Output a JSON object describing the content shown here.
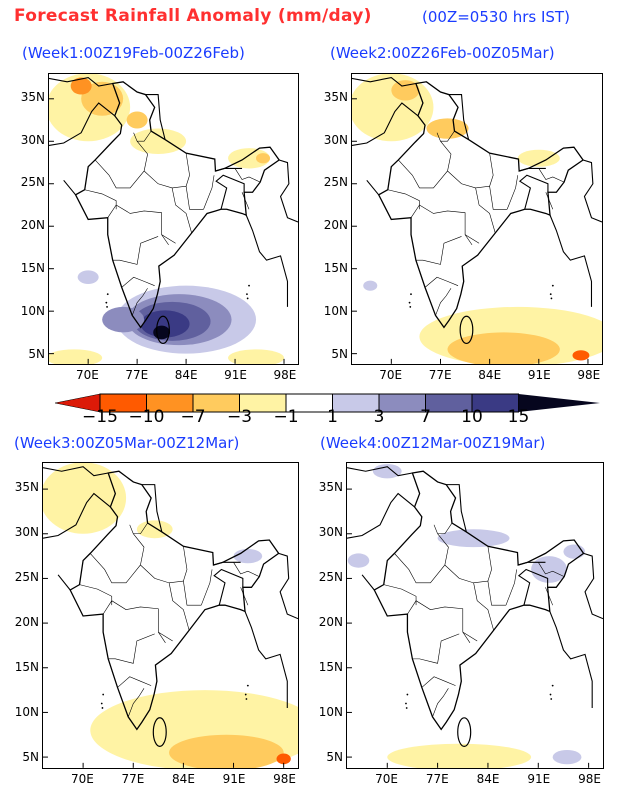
{
  "header": {
    "title": "Forecast Rainfall Anomaly (mm/day)",
    "subtitle": "(00Z=0530 hrs IST)"
  },
  "axes": {
    "lat_labels": [
      "35N",
      "30N",
      "25N",
      "20N",
      "15N",
      "10N",
      "5N"
    ],
    "lat_values": [
      35,
      30,
      25,
      20,
      15,
      10,
      5
    ],
    "lon_labels": [
      "70E",
      "77E",
      "84E",
      "91E",
      "98E"
    ],
    "lon_values": [
      70,
      77,
      84,
      91,
      98
    ],
    "extent": {
      "lon": [
        64.4,
        100
      ],
      "lat": [
        3.8,
        37.9
      ]
    }
  },
  "colorbar": {
    "labels": [
      "−15",
      "−10",
      "−7",
      "−3",
      "−1",
      "1",
      "3",
      "7",
      "10",
      "15"
    ],
    "colors": [
      "#dc1a08",
      "#ff5a00",
      "#ff9222",
      "#ffcb5e",
      "#fff3a4",
      "#ffffff",
      "#c8c9e8",
      "#8c8cbe",
      "#60609e",
      "#3a3a84",
      "#06061e"
    ]
  },
  "panels": [
    {
      "title": "(Week1:00Z19Feb-00Z26Feb)",
      "anomaly_regions": [
        {
          "lon": 70,
          "lat": 34,
          "rx": 6,
          "ry": 4,
          "cat": 4
        },
        {
          "lon": 72,
          "lat": 35,
          "rx": 3,
          "ry": 2,
          "cat": 3
        },
        {
          "lon": 69,
          "lat": 36.5,
          "rx": 1.5,
          "ry": 1,
          "cat": 2
        },
        {
          "lon": 77,
          "lat": 32.5,
          "rx": 1.5,
          "ry": 1,
          "cat": 3
        },
        {
          "lon": 80,
          "lat": 30,
          "rx": 4,
          "ry": 1.5,
          "cat": 4
        },
        {
          "lon": 93,
          "lat": 28,
          "rx": 3,
          "ry": 1.2,
          "cat": 4
        },
        {
          "lon": 95,
          "lat": 28,
          "rx": 1,
          "ry": 0.6,
          "cat": 3
        },
        {
          "lon": 68,
          "lat": 4.5,
          "rx": 4,
          "ry": 1,
          "cat": 4
        },
        {
          "lon": 94,
          "lat": 4.5,
          "rx": 4,
          "ry": 1,
          "cat": 4
        },
        {
          "lon": 84,
          "lat": 9,
          "rx": 10,
          "ry": 4,
          "cat": 6
        },
        {
          "lon": 83,
          "lat": 9,
          "rx": 7.5,
          "ry": 3,
          "cat": 7
        },
        {
          "lon": 82,
          "lat": 8.8,
          "rx": 5.5,
          "ry": 2.3,
          "cat": 8
        },
        {
          "lon": 81,
          "lat": 8.5,
          "rx": 3.5,
          "ry": 1.6,
          "cat": 9
        },
        {
          "lon": 80.5,
          "lat": 7.5,
          "rx": 1.2,
          "ry": 0.8,
          "cat": 10
        },
        {
          "lon": 70,
          "lat": 14,
          "rx": 1.5,
          "ry": 0.8,
          "cat": 6
        },
        {
          "lon": 75,
          "lat": 9,
          "rx": 3,
          "ry": 1.5,
          "cat": 7
        }
      ]
    },
    {
      "title": "(Week2:00Z26Feb-00Z05Mar)",
      "anomaly_regions": [
        {
          "lon": 70,
          "lat": 34,
          "rx": 6,
          "ry": 4,
          "cat": 4
        },
        {
          "lon": 72,
          "lat": 36,
          "rx": 2,
          "ry": 1.2,
          "cat": 3
        },
        {
          "lon": 78,
          "lat": 31.5,
          "rx": 3,
          "ry": 1.2,
          "cat": 3
        },
        {
          "lon": 91,
          "lat": 28,
          "rx": 3,
          "ry": 1,
          "cat": 4
        },
        {
          "lon": 88,
          "lat": 7,
          "rx": 14,
          "ry": 3.5,
          "cat": 4
        },
        {
          "lon": 86,
          "lat": 5.5,
          "rx": 8,
          "ry": 2,
          "cat": 3
        },
        {
          "lon": 97,
          "lat": 4.8,
          "rx": 1.2,
          "ry": 0.6,
          "cat": 1
        },
        {
          "lon": 67,
          "lat": 13,
          "rx": 1,
          "ry": 0.6,
          "cat": 6
        }
      ]
    },
    {
      "title": "(Week3:00Z05Mar-00Z12Mar)",
      "anomaly_regions": [
        {
          "lon": 70,
          "lat": 34,
          "rx": 6,
          "ry": 4,
          "cat": 4
        },
        {
          "lon": 80,
          "lat": 30.5,
          "rx": 2.5,
          "ry": 1,
          "cat": 4
        },
        {
          "lon": 93,
          "lat": 27.5,
          "rx": 2,
          "ry": 0.8,
          "cat": 6
        },
        {
          "lon": 87,
          "lat": 8,
          "rx": 16,
          "ry": 4.5,
          "cat": 4
        },
        {
          "lon": 90,
          "lat": 5.5,
          "rx": 8,
          "ry": 2,
          "cat": 3
        },
        {
          "lon": 98,
          "lat": 4.8,
          "rx": 1,
          "ry": 0.6,
          "cat": 1
        }
      ]
    },
    {
      "title": "(Week4:00Z12Mar-00Z19Mar)",
      "anomaly_regions": [
        {
          "lon": 70,
          "lat": 37,
          "rx": 2,
          "ry": 0.8,
          "cat": 6
        },
        {
          "lon": 82,
          "lat": 29.5,
          "rx": 5,
          "ry": 1,
          "cat": 6
        },
        {
          "lon": 92.5,
          "lat": 26,
          "rx": 2.5,
          "ry": 1.5,
          "cat": 6
        },
        {
          "lon": 96,
          "lat": 28,
          "rx": 1.5,
          "ry": 0.8,
          "cat": 6
        },
        {
          "lon": 66,
          "lat": 27,
          "rx": 1.5,
          "ry": 0.8,
          "cat": 6
        },
        {
          "lon": 80,
          "lat": 5,
          "rx": 10,
          "ry": 1.5,
          "cat": 4
        },
        {
          "lon": 95,
          "lat": 5,
          "rx": 2,
          "ry": 0.8,
          "cat": 6
        }
      ]
    }
  ]
}
